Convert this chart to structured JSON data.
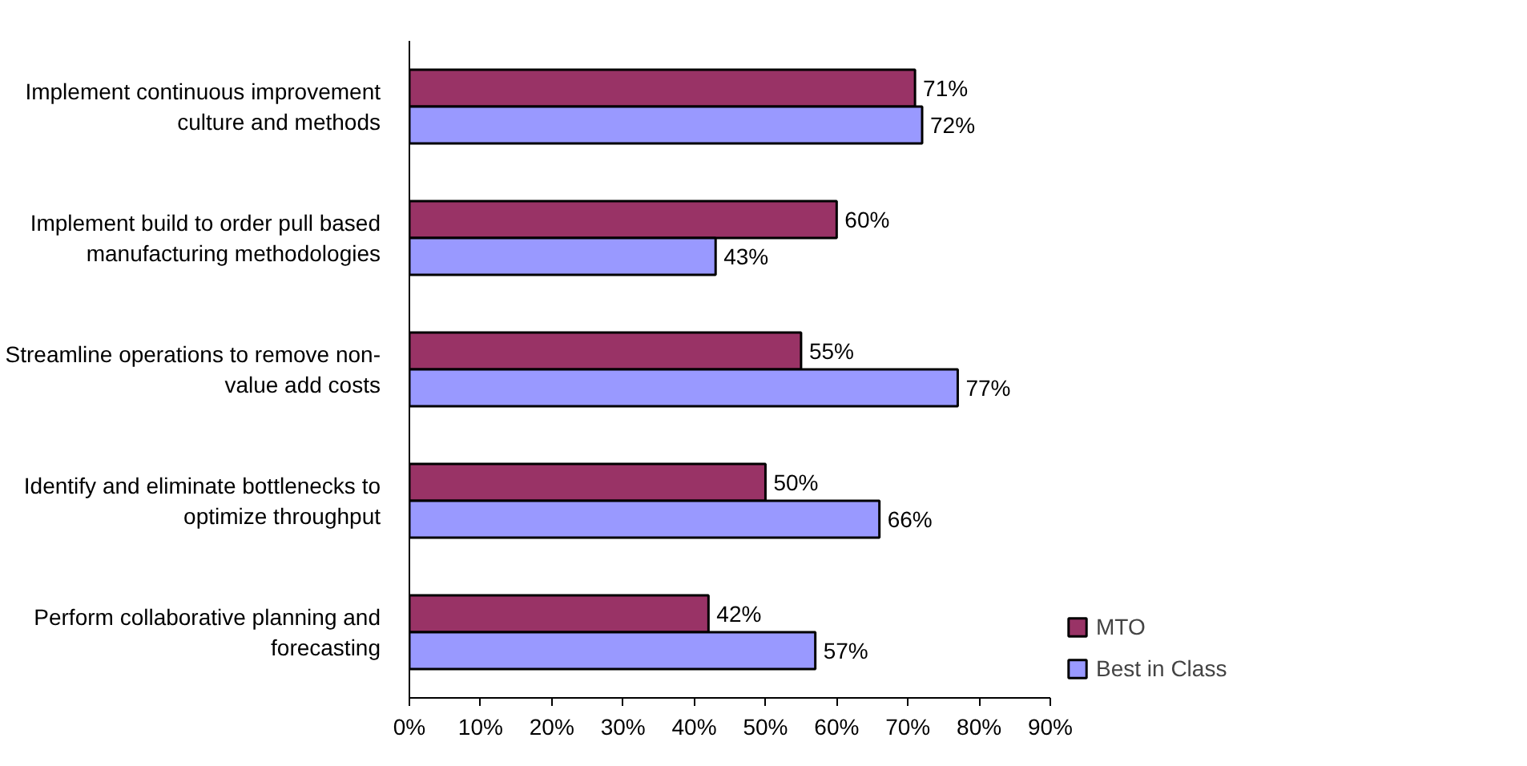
{
  "chart_data": {
    "type": "bar",
    "orientation": "horizontal",
    "categories": [
      "Implement continuous improvement culture and methods",
      "Implement build to order pull based manufacturing methodologies",
      "Streamline operations to remove non-value add costs",
      "Identify and eliminate bottlenecks to optimize throughput",
      "Perform collaborative planning and forecasting"
    ],
    "series": [
      {
        "name": "MTO",
        "color": "#993366",
        "values": [
          71,
          60,
          55,
          50,
          42
        ],
        "value_labels": [
          "71%",
          "60%",
          "55%",
          "50%",
          "42%"
        ]
      },
      {
        "name": "Best in Class",
        "color": "#9999ff",
        "values": [
          72,
          43,
          77,
          66,
          57
        ],
        "value_labels": [
          "72%",
          "43%",
          "77%",
          "66%",
          "57%"
        ]
      }
    ],
    "xlim": [
      0,
      90
    ],
    "xticks": [
      {
        "value": 0,
        "label": "0%"
      },
      {
        "value": 10,
        "label": "10%"
      },
      {
        "value": 20,
        "label": "20%"
      },
      {
        "value": 30,
        "label": "30%"
      },
      {
        "value": 40,
        "label": "40%"
      },
      {
        "value": 50,
        "label": "50%"
      },
      {
        "value": 60,
        "label": "60%"
      },
      {
        "value": 70,
        "label": "70%"
      },
      {
        "value": 80,
        "label": "80%"
      },
      {
        "value": 90,
        "label": "90%"
      }
    ],
    "grid": false,
    "legend": "right"
  }
}
